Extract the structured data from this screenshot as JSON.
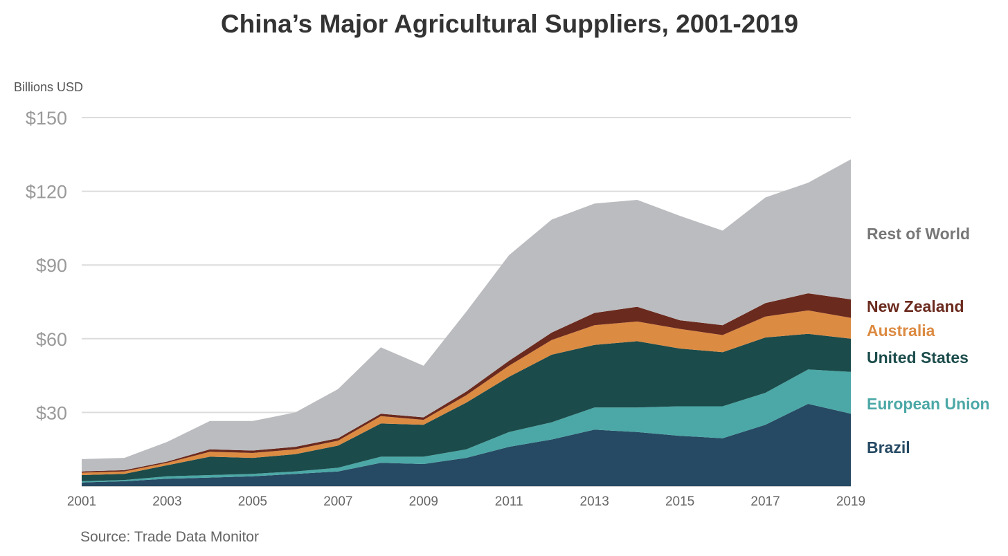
{
  "chart_data": {
    "type": "area",
    "stacked": true,
    "title": "China’s Major Agricultural Suppliers, 2001-2019",
    "ylabel": "Billions USD",
    "xlabel": "",
    "source": "Source: Trade Data Monitor",
    "ylim": [
      0,
      150
    ],
    "yticks": [
      30,
      60,
      90,
      120,
      150
    ],
    "ytick_labels": [
      "$30",
      "$60",
      "$90",
      "$120",
      "$150"
    ],
    "x": [
      2001,
      2002,
      2003,
      2004,
      2005,
      2006,
      2007,
      2008,
      2009,
      2010,
      2011,
      2012,
      2013,
      2014,
      2015,
      2016,
      2017,
      2018,
      2019
    ],
    "xtick_labels": [
      "2001",
      "2003",
      "2005",
      "2007",
      "2009",
      "2011",
      "2013",
      "2015",
      "2017",
      "2019"
    ],
    "grid": true,
    "legend_position": "right",
    "series": [
      {
        "name": "Brazil",
        "color": "#264A63",
        "values": [
          1.5,
          2,
          3,
          3.5,
          4,
          5,
          6,
          9.5,
          9,
          11.5,
          16,
          19,
          23,
          22,
          20.5,
          19.5,
          25,
          33.5,
          29.5
        ]
      },
      {
        "name": "European Union",
        "color": "#4BA8A6",
        "values": [
          0.5,
          0.5,
          1,
          1,
          1,
          1,
          1.5,
          2.5,
          3,
          3.5,
          6,
          7,
          9,
          10,
          12,
          13,
          13,
          14,
          17
        ]
      },
      {
        "name": "United States",
        "color": "#1B4B4B",
        "values": [
          2.5,
          2.5,
          4.5,
          7.5,
          6.5,
          7,
          9,
          13.5,
          13,
          19,
          22.5,
          27.5,
          25.5,
          27,
          23.5,
          22,
          22.5,
          14.5,
          13.5
        ]
      },
      {
        "name": "Australia",
        "color": "#DC8B42",
        "values": [
          1,
          1,
          1,
          2,
          2,
          2,
          2,
          3,
          2,
          3,
          4.5,
          6,
          8,
          8,
          8,
          7,
          8.5,
          9.5,
          8.5
        ]
      },
      {
        "name": "New Zealand",
        "color": "#6B2A1E",
        "values": [
          0.5,
          0.5,
          0.5,
          1,
          1,
          1,
          1,
          1,
          1,
          1.5,
          2,
          3,
          5,
          6,
          3.5,
          4,
          5.5,
          7,
          7.5
        ]
      },
      {
        "name": "Rest of World",
        "color": "#BBBCBF",
        "values": [
          5,
          5,
          8,
          11.5,
          12,
          14,
          20,
          27,
          21,
          32.5,
          43,
          46,
          44.5,
          43.5,
          42.5,
          38.5,
          43,
          45,
          57
        ]
      }
    ]
  }
}
